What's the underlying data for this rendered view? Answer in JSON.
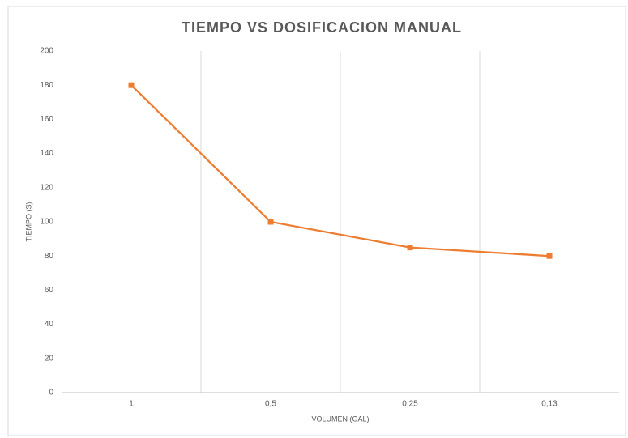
{
  "chart_data": {
    "type": "line",
    "title": "TIEMPO VS DOSIFICACION MANUAL",
    "x_label": "VOLUMEN (GAL)",
    "y_label": "TIEMPO (S)",
    "categories": [
      "1",
      "0,5",
      "0,25",
      "0,13"
    ],
    "series": [
      {
        "name": "TIEMPO (S)",
        "color": "#ed7d31",
        "values": [
          180,
          100,
          85,
          80
        ]
      }
    ],
    "ylim": [
      0,
      200
    ],
    "yticks": [
      0,
      20,
      40,
      60,
      80,
      100,
      120,
      140,
      160,
      180,
      200
    ],
    "grid": "x",
    "legend": false
  }
}
